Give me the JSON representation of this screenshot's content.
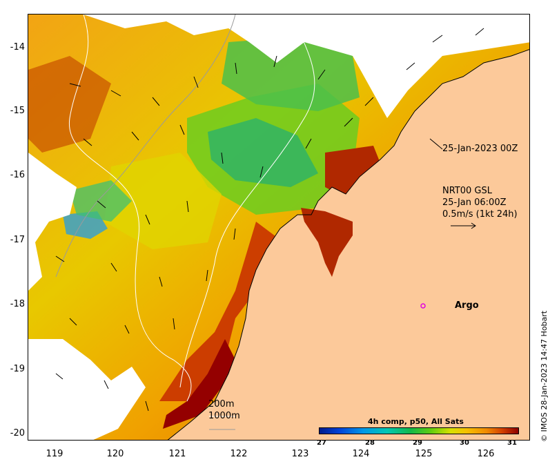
{
  "map": {
    "y_axis_ticks": [
      "-14",
      "-15",
      "-16",
      "-17",
      "-18",
      "-19",
      "-20"
    ],
    "x_axis_ticks": [
      "119",
      "120",
      "121",
      "122",
      "123",
      "124",
      "125",
      "126"
    ],
    "colors": {
      "land": "#fcc99a",
      "cloud": "#ffffff",
      "contour": "#9a9a9a",
      "argo_marker": "#e000e0"
    },
    "annotations": {
      "date_label": "25-Jan-2023 00Z",
      "current_model": "NRT00 GSL",
      "current_time": "25-Jan 06:00Z",
      "current_scale": "0.5m/s (1kt 24h)",
      "argo_label": "Argo",
      "isobath_200": "200m",
      "isobath_1000": "1000m"
    },
    "colorbar": {
      "title": "4h comp, p50, All Sats",
      "ticks": [
        "27",
        "28",
        "29",
        "30",
        "31"
      ]
    },
    "credit": "© IMOS 28-Jan-2023 14:47 Hobart"
  }
}
